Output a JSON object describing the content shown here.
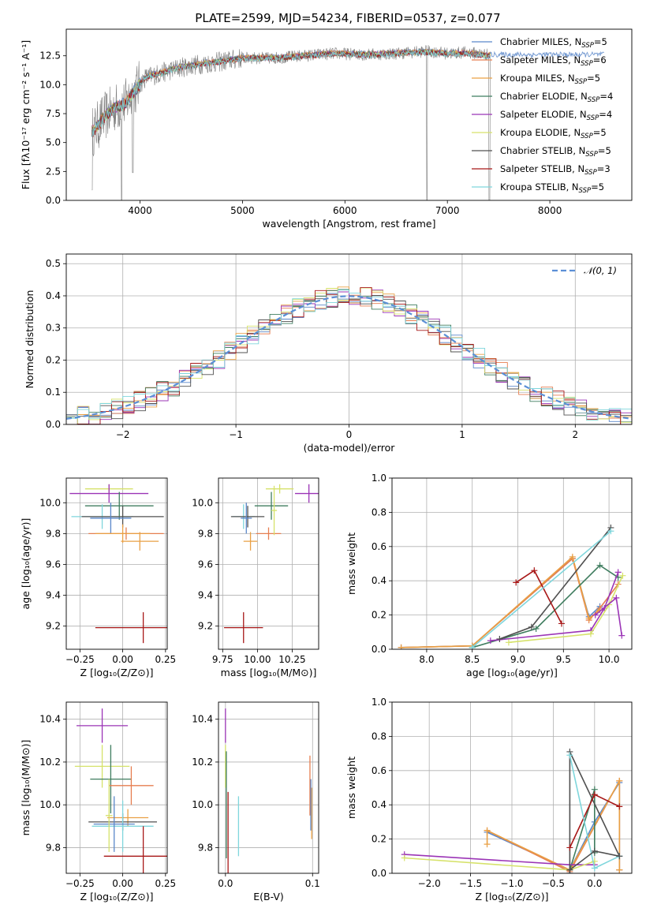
{
  "figure": {
    "title": "PLATE=2599, MJD=54234, FIBERID=0537, z=0.077"
  },
  "models": [
    {
      "name": "Chabrier MILES",
      "nssp": "5",
      "color": "#5a87c9"
    },
    {
      "name": "Salpeter MILES",
      "nssp": "6",
      "color": "#e67e50"
    },
    {
      "name": "Kroupa MILES",
      "nssp": "5",
      "color": "#e9a045"
    },
    {
      "name": "Chabrier ELODIE",
      "nssp": "4",
      "color": "#3f7d5f"
    },
    {
      "name": "Salpeter ELODIE",
      "nssp": "4",
      "color": "#9b34b6"
    },
    {
      "name": "Kroupa ELODIE",
      "nssp": "5",
      "color": "#d6e26a"
    },
    {
      "name": "Chabrier STELIB",
      "nssp": "5",
      "color": "#505050"
    },
    {
      "name": "Salpeter STELIB",
      "nssp": "3",
      "color": "#a81818"
    },
    {
      "name": "Kroupa STELIB",
      "nssp": "5",
      "color": "#7fd6dc"
    }
  ],
  "chart_data": [
    {
      "type": "line",
      "panel": "spectrum",
      "xlabel": "wavelength [Angstrom, rest frame]",
      "ylabel": "Flux [fλ10⁻¹⁷ erg cm⁻² s⁻¹ A⁻¹]",
      "xlim": [
        3280,
        8800
      ],
      "ylim": [
        0,
        14.8
      ],
      "xticks": [
        4000,
        5000,
        6000,
        7000,
        8000
      ],
      "yticks": [
        0.0,
        2.5,
        5.0,
        7.5,
        10.0,
        12.5
      ],
      "ytick_labels": [
        "0.0",
        "2.5",
        "5.0",
        "7.5",
        "10.0",
        "12.5"
      ],
      "grid": false,
      "legend": "right",
      "data_envelope": {
        "x": [
          3550,
          3650,
          3750,
          3850,
          3950,
          4050,
          4200,
          4400,
          4600,
          4800,
          5000,
          5300,
          5600,
          5900,
          6200,
          6500,
          6800,
          7000,
          7200,
          7400
        ],
        "y": [
          6.0,
          7.2,
          8.0,
          8.3,
          9.5,
          10.6,
          11.0,
          11.5,
          11.8,
          12.0,
          12.3,
          12.3,
          12.5,
          12.7,
          12.6,
          12.7,
          12.9,
          12.7,
          12.8,
          12.6
        ]
      },
      "model_envelope": {
        "x": [
          3550,
          3650,
          3750,
          3850,
          3950,
          4050,
          4200,
          4400,
          4600,
          4800,
          5000,
          5300,
          5600,
          5900,
          6200,
          6500,
          6800,
          7000,
          7200,
          7400
        ],
        "y": [
          6.1,
          7.3,
          8.1,
          8.4,
          9.6,
          10.7,
          11.1,
          11.6,
          11.9,
          12.1,
          12.4,
          12.4,
          12.6,
          12.8,
          12.7,
          12.8,
          12.9,
          12.8,
          12.8,
          12.6
        ]
      },
      "drops": [
        {
          "x": 3530,
          "y": 0.9
        },
        {
          "x": 3820,
          "y": 0.0
        },
        {
          "x": 3930,
          "y": 2.4
        },
        {
          "x": 6800,
          "y": 0.0
        },
        {
          "x": 7410,
          "y": 0.0
        }
      ],
      "data_extent": [
        3530,
        7420
      ],
      "model_extent": [
        3530,
        8530
      ]
    },
    {
      "type": "line",
      "panel": "residuals",
      "xlabel": "(data-model)/error",
      "ylabel": "Normed distribution",
      "xlim": [
        -2.5,
        2.5
      ],
      "ylim": [
        0,
        0.53
      ],
      "xticks": [
        -2,
        -1,
        0,
        1,
        2
      ],
      "yticks": [
        0.0,
        0.1,
        0.2,
        0.3,
        0.4,
        0.5
      ],
      "ytick_labels": [
        "0.0",
        "0.1",
        "0.2",
        "0.3",
        "0.4",
        "0.5"
      ],
      "grid": true,
      "legend": "top-right",
      "reference_label": "𝒩(0, 1)",
      "reference": {
        "mean": 0,
        "sigma": 1
      },
      "bin_width": 0.1,
      "noise_amplitude": 0.032
    },
    {
      "type": "scatter",
      "panel": "age-vs-Z",
      "xlabel": "Z [log₁₀(Z/Z⊙)]",
      "ylabel": "age  [log₁₀(age/yr)]",
      "xlim": [
        -0.33,
        0.26
      ],
      "ylim": [
        9.05,
        10.16
      ],
      "xticks": [
        -0.25,
        0.0,
        0.25
      ],
      "xtick_labels": [
        "−0.25",
        "0.00",
        "0.25"
      ],
      "yticks": [
        9.2,
        9.4,
        9.6,
        9.8,
        10.0
      ],
      "ytick_labels": [
        "9.2",
        "9.4",
        "9.6",
        "9.8",
        "10.0"
      ],
      "grid": true,
      "points": [
        {
          "model": 5,
          "x": -0.08,
          "y": 10.09,
          "xerr": 0.14,
          "yerr": 0.03
        },
        {
          "model": 4,
          "x": -0.08,
          "y": 10.06,
          "xerr": 0.23,
          "yerr": 0.06
        },
        {
          "model": 3,
          "x": -0.02,
          "y": 9.98,
          "xerr": 0.2,
          "yerr": 0.09
        },
        {
          "model": 8,
          "x": -0.12,
          "y": 9.91,
          "xerr": 0.18,
          "yerr": 0.08
        },
        {
          "model": 6,
          "x": 0.0,
          "y": 9.91,
          "xerr": 0.24,
          "yerr": 0.07
        },
        {
          "model": 0,
          "x": -0.07,
          "y": 9.9,
          "xerr": 0.12,
          "yerr": 0.1
        },
        {
          "model": 7,
          "x": 0.12,
          "y": 9.19,
          "xerr": 0.28,
          "yerr": 0.1
        },
        {
          "model": 1,
          "x": 0.02,
          "y": 9.8,
          "xerr": 0.22,
          "yerr": 0.04
        },
        {
          "model": 2,
          "x": 0.1,
          "y": 9.75,
          "xerr": 0.11,
          "yerr": 0.06
        },
        {
          "model": 2,
          "x": 0.0,
          "y": 9.8,
          "xerr": 0.16,
          "yerr": 0.06
        }
      ]
    },
    {
      "type": "scatter",
      "panel": "age-vs-mass",
      "xlabel": "mass [log₁₀(M/M⊙)]",
      "ylabel": "",
      "xlim": [
        9.72,
        10.44
      ],
      "ylim": [
        9.05,
        10.16
      ],
      "xticks": [
        9.75,
        10.0,
        10.25
      ],
      "xtick_labels": [
        "9.75",
        "10.00",
        "10.25"
      ],
      "yticks": [
        9.2,
        9.4,
        9.6,
        9.8,
        10.0
      ],
      "ytick_labels": [
        "9.2",
        "9.4",
        "9.6",
        "9.8",
        "10.0"
      ],
      "grid": true,
      "points": [
        {
          "model": 5,
          "x": 10.16,
          "y": 10.09,
          "xerr": 0.1,
          "yerr": 0.03
        },
        {
          "model": 4,
          "x": 10.37,
          "y": 10.06,
          "xerr": 0.1,
          "yerr": 0.06
        },
        {
          "model": 3,
          "x": 10.1,
          "y": 9.98,
          "xerr": 0.12,
          "yerr": 0.09
        },
        {
          "model": 8,
          "x": 9.9,
          "y": 9.91,
          "xerr": 0.08,
          "yerr": 0.08
        },
        {
          "model": 6,
          "x": 9.93,
          "y": 9.91,
          "xerr": 0.12,
          "yerr": 0.07
        },
        {
          "model": 0,
          "x": 9.92,
          "y": 9.9,
          "xerr": 0.04,
          "yerr": 0.1
        },
        {
          "model": 7,
          "x": 9.9,
          "y": 9.19,
          "xerr": 0.14,
          "yerr": 0.1
        },
        {
          "model": 1,
          "x": 10.08,
          "y": 9.8,
          "xerr": 0.09,
          "yerr": 0.04
        },
        {
          "model": 2,
          "x": 9.95,
          "y": 9.75,
          "xerr": 0.05,
          "yerr": 0.06
        },
        {
          "model": 5,
          "x": 10.12,
          "y": 9.95,
          "xerr": 0.02,
          "yerr": 0.16
        }
      ]
    },
    {
      "type": "line",
      "panel": "weight-vs-age",
      "xlabel": "age  [log₁₀(age/yr)]",
      "ylabel": "mass weight",
      "xlim": [
        7.62,
        10.25
      ],
      "ylim": [
        0,
        1.0
      ],
      "xticks": [
        8.0,
        8.5,
        9.0,
        9.5,
        10.0
      ],
      "xtick_labels": [
        "8.0",
        "8.5",
        "9.0",
        "9.5",
        "10.0"
      ],
      "yticks": [
        0.0,
        0.2,
        0.4,
        0.6,
        0.8,
        1.0
      ],
      "ytick_labels": [
        "0.0",
        "0.2",
        "0.4",
        "0.6",
        "0.8",
        "1.0"
      ],
      "grid": true,
      "series": [
        {
          "model": 0,
          "x": [
            7.72,
            8.5,
            9.6,
            9.78,
            9.9
          ],
          "y": [
            0.01,
            0.02,
            0.53,
            0.19,
            0.25
          ]
        },
        {
          "model": 1,
          "x": [
            7.72,
            8.5,
            9.6,
            9.78,
            9.9,
            10.1
          ],
          "y": [
            0.01,
            0.02,
            0.53,
            0.17,
            0.24,
            0.38
          ]
        },
        {
          "model": 2,
          "x": [
            7.72,
            8.5,
            9.6,
            9.78,
            9.9
          ],
          "y": [
            0.01,
            0.02,
            0.54,
            0.18,
            0.23
          ]
        },
        {
          "model": 3,
          "x": [
            8.5,
            9.2,
            9.9,
            10.1
          ],
          "y": [
            0.01,
            0.12,
            0.49,
            0.42
          ]
        },
        {
          "model": 4,
          "x": [
            8.7,
            9.8,
            9.95,
            10.1
          ],
          "y": [
            0.05,
            0.11,
            0.24,
            0.45
          ]
        },
        {
          "model": 5,
          "x": [
            8.9,
            9.8,
            10.0,
            10.15
          ],
          "y": [
            0.04,
            0.09,
            0.26,
            0.43
          ]
        },
        {
          "model": 6,
          "x": [
            8.8,
            9.15,
            10.02
          ],
          "y": [
            0.06,
            0.13,
            0.71
          ]
        },
        {
          "model": 7,
          "x": [
            8.98,
            9.18,
            9.48
          ],
          "y": [
            0.39,
            0.46,
            0.15
          ]
        },
        {
          "model": 8,
          "x": [
            8.5,
            10.02
          ],
          "y": [
            0.01,
            0.69
          ]
        },
        {
          "model": 4,
          "x": [
            9.85,
            10.08,
            10.14
          ],
          "y": [
            0.2,
            0.3,
            0.08
          ]
        }
      ]
    },
    {
      "type": "scatter",
      "panel": "mass-vs-Z",
      "xlabel": "Z [log₁₀(Z/Z⊙)]",
      "ylabel": "mass [log₁₀(M/M⊙)]",
      "xlim": [
        -0.33,
        0.26
      ],
      "ylim": [
        9.68,
        10.48
      ],
      "xticks": [
        -0.25,
        0.0,
        0.25
      ],
      "xtick_labels": [
        "−0.25",
        "0.00",
        "0.25"
      ],
      "yticks": [
        9.8,
        10.0,
        10.2,
        10.4
      ],
      "ytick_labels": [
        "9.8",
        "10.0",
        "10.2",
        "10.4"
      ],
      "grid": true,
      "points": [
        {
          "model": 4,
          "x": -0.12,
          "y": 10.37,
          "xerr": 0.15,
          "yerr": 0.08
        },
        {
          "model": 5,
          "x": -0.12,
          "y": 10.18,
          "xerr": 0.16,
          "yerr": 0.1
        },
        {
          "model": 3,
          "x": -0.07,
          "y": 10.12,
          "xerr": 0.12,
          "yerr": 0.16
        },
        {
          "model": 1,
          "x": 0.05,
          "y": 10.09,
          "xerr": 0.13,
          "yerr": 0.09
        },
        {
          "model": 2,
          "x": 0.03,
          "y": 9.94,
          "xerr": 0.12,
          "yerr": 0.04
        },
        {
          "model": 6,
          "x": 0.0,
          "y": 9.92,
          "xerr": 0.2,
          "yerr": 0.04
        },
        {
          "model": 8,
          "x": 0.0,
          "y": 9.9,
          "xerr": 0.18,
          "yerr": 0.12
        },
        {
          "model": 0,
          "x": -0.05,
          "y": 9.91,
          "xerr": 0.12,
          "yerr": 0.13
        },
        {
          "model": 7,
          "x": 0.12,
          "y": 9.76,
          "xerr": 0.23,
          "yerr": 0.14
        },
        {
          "model": 5,
          "x": -0.08,
          "y": 9.95,
          "xerr": 0.02,
          "yerr": 0.17
        }
      ]
    },
    {
      "type": "scatter",
      "panel": "mass-vs-EBV",
      "xlabel": "E(B-V)",
      "ylabel": "",
      "xlim": [
        -0.008,
        0.107
      ],
      "ylim": [
        9.68,
        10.48
      ],
      "xticks": [
        0.0,
        0.1
      ],
      "xtick_labels": [
        "0.0",
        "0.1"
      ],
      "yticks": [
        9.8,
        10.0,
        10.2,
        10.4
      ],
      "ytick_labels": [
        "9.8",
        "10.0",
        "10.2",
        "10.4"
      ],
      "grid": true,
      "points": [
        {
          "model": 4,
          "x": 0.0,
          "y": 10.37,
          "xerr": 0,
          "yerr": 0.08
        },
        {
          "model": 5,
          "x": 0.0,
          "y": 10.18,
          "xerr": 0,
          "yerr": 0.1
        },
        {
          "model": 3,
          "x": 0.001,
          "y": 10.0,
          "xerr": 0,
          "yerr": 0.25
        },
        {
          "model": 7,
          "x": 0.003,
          "y": 9.76,
          "xerr": 0,
          "yerr": 0.3
        },
        {
          "model": 8,
          "x": 0.015,
          "y": 9.9,
          "xerr": 0,
          "yerr": 0.14
        },
        {
          "model": 1,
          "x": 0.097,
          "y": 10.09,
          "xerr": 0,
          "yerr": 0.14
        },
        {
          "model": 2,
          "x": 0.099,
          "y": 9.96,
          "xerr": 0,
          "yerr": 0.12
        },
        {
          "model": 0,
          "x": 0.098,
          "y": 10.0,
          "xerr": 0,
          "yerr": 0.12
        }
      ]
    },
    {
      "type": "line",
      "panel": "weight-vs-Z",
      "xlabel": "Z [log₁₀(Z/Z⊙)]",
      "ylabel": "mass weight",
      "xlim": [
        -2.45,
        0.45
      ],
      "ylim": [
        0,
        1.0
      ],
      "xticks": [
        -2.0,
        -1.5,
        -1.0,
        -0.5,
        0.0
      ],
      "xtick_labels": [
        "−2.0",
        "−1.5",
        "−1.0",
        "−0.5",
        "0.0"
      ],
      "yticks": [
        0.0,
        0.2,
        0.4,
        0.6,
        0.8,
        1.0
      ],
      "ytick_labels": [
        "0.0",
        "0.2",
        "0.4",
        "0.6",
        "0.8",
        "1.0"
      ],
      "grid": true,
      "series": [
        {
          "model": 0,
          "x": [
            -1.3,
            -0.3,
            0.0,
            0.3,
            0.3
          ],
          "y": [
            0.24,
            0.02,
            0.3,
            0.53,
            0.02
          ]
        },
        {
          "model": 1,
          "x": [
            -1.3,
            -0.3,
            0.3,
            0.3
          ],
          "y": [
            0.25,
            0.01,
            0.54,
            0.02
          ]
        },
        {
          "model": 2,
          "x": [
            -1.3,
            -1.3,
            -0.3,
            0.3,
            0.3
          ],
          "y": [
            0.17,
            0.25,
            0.02,
            0.54,
            0.02
          ]
        },
        {
          "model": 3,
          "x": [
            -0.3,
            0.0,
            0.0
          ],
          "y": [
            0.02,
            0.49,
            0.12
          ]
        },
        {
          "model": 4,
          "x": [
            -2.3,
            -0.3,
            0.0
          ],
          "y": [
            0.11,
            0.05,
            0.05
          ]
        },
        {
          "model": 5,
          "x": [
            -2.3,
            -0.3,
            0.0
          ],
          "y": [
            0.09,
            0.02,
            0.07
          ]
        },
        {
          "model": 6,
          "x": [
            -0.3,
            -0.3,
            0.3
          ],
          "y": [
            0.0,
            0.71,
            0.1
          ]
        },
        {
          "model": 7,
          "x": [
            -0.3,
            0.0,
            0.3
          ],
          "y": [
            0.15,
            0.46,
            0.39
          ]
        },
        {
          "model": 8,
          "x": [
            -0.3,
            0.0,
            0.3
          ],
          "y": [
            0.69,
            0.03,
            0.1
          ]
        },
        {
          "model": 6,
          "x": [
            -0.3,
            0.0,
            0.3
          ],
          "y": [
            0.02,
            0.13,
            0.1
          ]
        }
      ]
    }
  ]
}
